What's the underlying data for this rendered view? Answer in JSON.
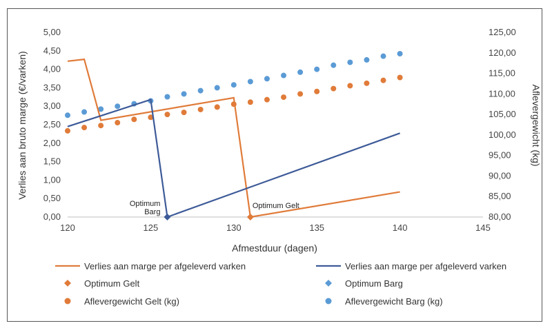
{
  "chart_data": {
    "type": "line",
    "xlabel": "Afmestduur (dagen)",
    "ylabel_left": "Verlies aan bruto marge (€/varken)",
    "ylabel_right": "Aflevergewicht (kg)",
    "xlim": [
      120,
      145
    ],
    "xticks": [
      "120",
      "125",
      "130",
      "135",
      "140",
      "145"
    ],
    "ylim_left": [
      0,
      5
    ],
    "yticks_left": [
      "0,00",
      "0,50",
      "1,00",
      "1,50",
      "2,00",
      "2,50",
      "3,00",
      "3,50",
      "4,00",
      "4,50",
      "5,00"
    ],
    "ylim_right": [
      80,
      125
    ],
    "yticks_right": [
      "80,00",
      "85,00",
      "90,00",
      "95,00",
      "100,00",
      "105,00",
      "110,00",
      "115,00",
      "120,00",
      "125,00"
    ],
    "grid": false,
    "legend_position": "bottom",
    "series": [
      {
        "name": "Verlies aan marge per afgeleverd varken",
        "kind": "line",
        "axis": "left",
        "color": "#e07b39",
        "points": [
          [
            120,
            4.22
          ],
          [
            121,
            4.27
          ],
          [
            122,
            2.62
          ],
          [
            130,
            3.23
          ],
          [
            131,
            0.0
          ],
          [
            140,
            0.68
          ]
        ]
      },
      {
        "name": "Verlies aan marge per afgeleverd varken",
        "kind": "line",
        "axis": "left",
        "color": "#3d5a98",
        "points": [
          [
            120,
            2.45
          ],
          [
            125,
            3.18
          ],
          [
            126,
            0.0
          ],
          [
            140,
            2.27
          ]
        ]
      },
      {
        "name": "Optimum Gelt",
        "kind": "marker",
        "axis": "left",
        "color": "#e07b39",
        "points": [
          [
            131,
            0.0
          ]
        ]
      },
      {
        "name": "Optimum Barg",
        "kind": "marker",
        "axis": "left",
        "color": "#3d5a98",
        "points": [
          [
            126,
            0.0
          ]
        ]
      },
      {
        "name": "Aflevergewicht  Gelt (kg)",
        "kind": "scatter",
        "axis": "right",
        "color": "#e07b39",
        "points": [
          [
            120,
            101.0
          ],
          [
            121,
            101.8
          ],
          [
            122,
            102.3
          ],
          [
            123,
            103.0
          ],
          [
            124,
            103.8
          ],
          [
            125,
            104.3
          ],
          [
            126,
            105.0
          ],
          [
            127,
            105.5
          ],
          [
            128,
            106.2
          ],
          [
            129,
            106.8
          ],
          [
            130,
            107.5
          ],
          [
            131,
            108.0
          ],
          [
            132,
            108.6
          ],
          [
            133,
            109.2
          ],
          [
            134,
            110.0
          ],
          [
            135,
            110.6
          ],
          [
            136,
            111.3
          ],
          [
            137,
            112.0
          ],
          [
            138,
            112.6
          ],
          [
            139,
            113.3
          ],
          [
            140,
            114.0
          ]
        ]
      },
      {
        "name": "Aflevergewicht Barg (kg)",
        "kind": "scatter",
        "axis": "right",
        "color": "#5b9bd5",
        "points": [
          [
            120,
            104.8
          ],
          [
            121,
            105.6
          ],
          [
            122,
            106.3
          ],
          [
            123,
            107.0
          ],
          [
            124,
            107.6
          ],
          [
            125,
            108.3
          ],
          [
            126,
            109.3
          ],
          [
            127,
            110.0
          ],
          [
            128,
            110.8
          ],
          [
            129,
            111.5
          ],
          [
            130,
            112.2
          ],
          [
            131,
            113.0
          ],
          [
            132,
            113.7
          ],
          [
            133,
            114.5
          ],
          [
            134,
            115.3
          ],
          [
            135,
            116.0
          ],
          [
            136,
            117.0
          ],
          [
            137,
            117.7
          ],
          [
            138,
            118.3
          ],
          [
            139,
            119.2
          ],
          [
            140,
            119.8
          ]
        ]
      }
    ],
    "annotations": [
      {
        "text": "Optimum",
        "x": 126,
        "y": 0
      },
      {
        "text": "Barg",
        "x": 126,
        "y": 0
      },
      {
        "text": "Optimum Gelt",
        "x": 131,
        "y": 0
      }
    ],
    "legend": [
      {
        "label": "Verlies aan marge per afgeleverd varken",
        "symbol": "line",
        "color": "#e07b39"
      },
      {
        "label": "Verlies aan marge per afgeleverd varken",
        "symbol": "line",
        "color": "#3d5a98"
      },
      {
        "label": "Optimum Gelt",
        "symbol": "diamond",
        "color": "#e07b39"
      },
      {
        "label": "Optimum Barg",
        "symbol": "diamond",
        "color": "#5b9bd5"
      },
      {
        "label": "Aflevergewicht  Gelt (kg)",
        "symbol": "dot",
        "color": "#e07b39"
      },
      {
        "label": "Aflevergewicht Barg (kg)",
        "symbol": "dot",
        "color": "#5b9bd5"
      }
    ]
  }
}
